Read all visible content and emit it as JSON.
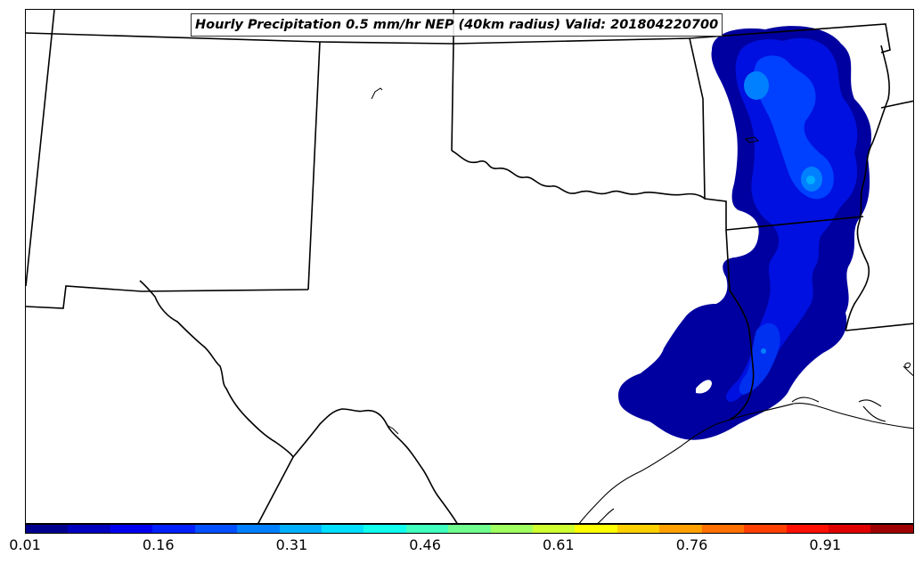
{
  "title": "Hourly Precipitation 0.5 mm/hr NEP (40km radius) Valid: 201804220700",
  "colorbar": {
    "tick_labels": [
      "0.01",
      "0.16",
      "0.31",
      "0.46",
      "0.61",
      "0.76",
      "0.91"
    ],
    "colors": [
      "#00008f",
      "#0000bf",
      "#0000ef",
      "#0020ff",
      "#0050ff",
      "#0080ff",
      "#00b0ff",
      "#00dfff",
      "#10ffef",
      "#40ffbf",
      "#70ff8f",
      "#a0ff60",
      "#cfff30",
      "#ffff00",
      "#ffd000",
      "#ffa000",
      "#ff7000",
      "#ff4000",
      "#ff1000",
      "#df0000",
      "#9f0000"
    ]
  },
  "precip_colors": {
    "low": "#0000a0",
    "mid": "#0010e0",
    "high": "#0040ff",
    "peak": "#0080ff"
  }
}
